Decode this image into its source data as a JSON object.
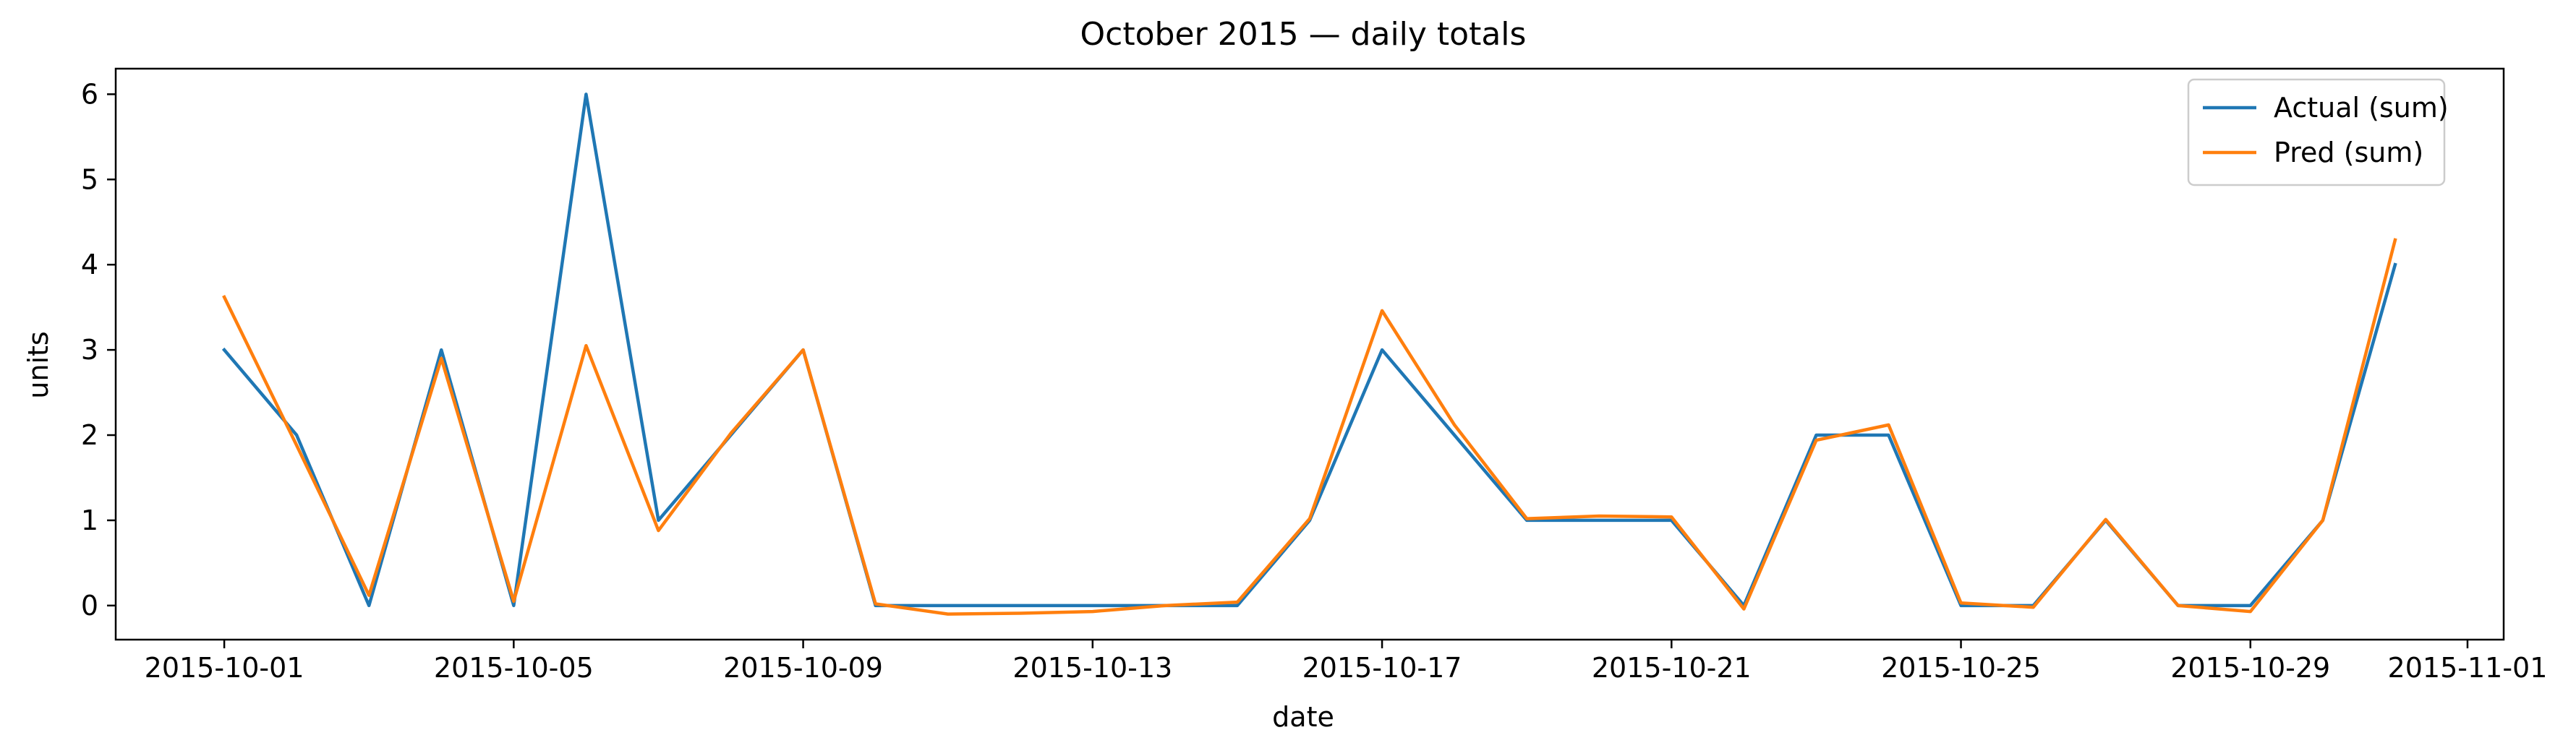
{
  "chart_data": {
    "type": "line",
    "title": "October 2015 — daily totals",
    "xlabel": "date",
    "ylabel": "units",
    "x": [
      "2015-10-01",
      "2015-10-02",
      "2015-10-03",
      "2015-10-04",
      "2015-10-05",
      "2015-10-06",
      "2015-10-07",
      "2015-10-08",
      "2015-10-09",
      "2015-10-10",
      "2015-10-11",
      "2015-10-12",
      "2015-10-13",
      "2015-10-14",
      "2015-10-15",
      "2015-10-16",
      "2015-10-17",
      "2015-10-18",
      "2015-10-19",
      "2015-10-20",
      "2015-10-21",
      "2015-10-22",
      "2015-10-23",
      "2015-10-24",
      "2015-10-25",
      "2015-10-26",
      "2015-10-27",
      "2015-10-28",
      "2015-10-29",
      "2015-10-30",
      "2015-10-31"
    ],
    "series": [
      {
        "name": "Actual (sum)",
        "color": "#1f77b4",
        "values": [
          3,
          2,
          0,
          3,
          0,
          6,
          1,
          2,
          3,
          0,
          0,
          0,
          0,
          0,
          0,
          1,
          3,
          2,
          1,
          1,
          1,
          0,
          2,
          2,
          0,
          0,
          1,
          0,
          0,
          1,
          4
        ]
      },
      {
        "name": "Pred (sum)",
        "color": "#ff7f0e",
        "values": [
          3.62,
          1.88,
          0.12,
          2.9,
          0.05,
          3.05,
          0.88,
          2.02,
          3.0,
          0.02,
          -0.1,
          -0.09,
          -0.07,
          0.0,
          0.04,
          1.02,
          3.46,
          2.12,
          1.02,
          1.05,
          1.04,
          -0.04,
          1.94,
          2.12,
          0.03,
          -0.02,
          1.01,
          0.0,
          -0.07,
          1.0,
          4.29
        ]
      }
    ],
    "x_ticks": [
      "2015-10-01",
      "2015-10-05",
      "2015-10-09",
      "2015-10-13",
      "2015-10-17",
      "2015-10-21",
      "2015-10-25",
      "2015-10-29",
      "2015-11-01"
    ],
    "y_ticks": [
      "0",
      "1",
      "2",
      "3",
      "4",
      "5",
      "6"
    ],
    "ylim": [
      -0.4,
      6.3
    ],
    "xlim": [
      "2015-09-29 12:00",
      "2015-11-01 12:00"
    ],
    "grid": false,
    "legend": "top-right"
  }
}
